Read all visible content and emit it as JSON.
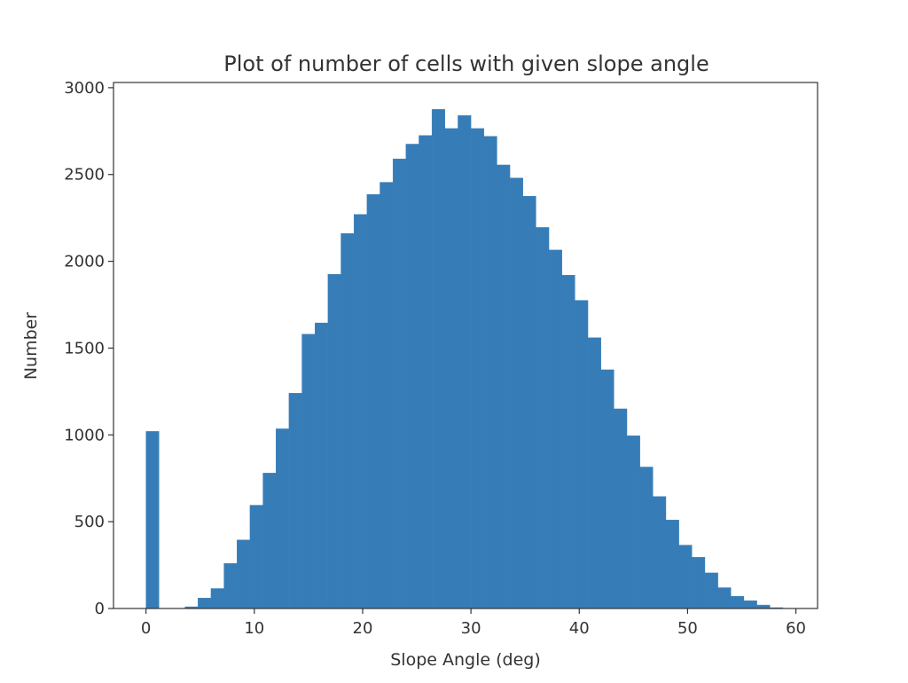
{
  "chart_data": {
    "type": "bar",
    "title": "Plot of number of cells with given slope angle",
    "xlabel": "Slope Angle (deg)",
    "ylabel": "Number",
    "xlim": [
      -3,
      62
    ],
    "ylim": [
      0,
      3030
    ],
    "xticks": [
      0,
      10,
      20,
      30,
      40,
      50,
      60
    ],
    "yticks": [
      0,
      500,
      1000,
      1500,
      2000,
      2500,
      3000
    ],
    "grid": false,
    "bar_color": "#367db8",
    "bins": {
      "start": 0,
      "width": 1.2,
      "counts": [
        1020,
        0,
        0,
        10,
        60,
        115,
        260,
        395,
        595,
        780,
        1035,
        1240,
        1580,
        1645,
        1925,
        2160,
        2270,
        2385,
        2455,
        2590,
        2675,
        2725,
        2875,
        2765,
        2840,
        2765,
        2720,
        2555,
        2480,
        2375,
        2195,
        2065,
        1920,
        1775,
        1560,
        1375,
        1150,
        995,
        815,
        645,
        510,
        365,
        295,
        205,
        120,
        70,
        45,
        20,
        5
      ]
    }
  }
}
